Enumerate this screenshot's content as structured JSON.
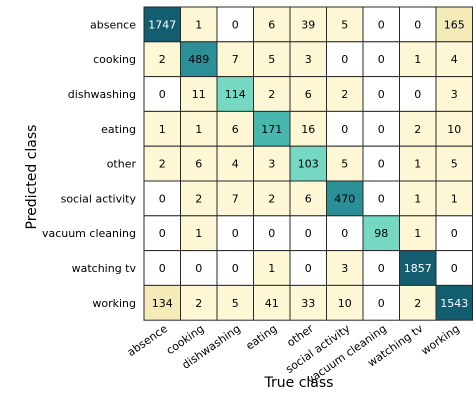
{
  "chart_data": {
    "type": "heatmap",
    "xlabel": "True class",
    "ylabel": "Predicted class",
    "x_categories": [
      "absence",
      "cooking",
      "dishwashing",
      "eating",
      "other",
      "social activity",
      "vacuum cleaning",
      "watching tv",
      "working"
    ],
    "y_categories": [
      "absence",
      "cooking",
      "dishwashing",
      "eating",
      "other",
      "social activity",
      "vacuum cleaning",
      "watching tv",
      "working"
    ],
    "values": [
      [
        1747,
        1,
        0,
        6,
        39,
        5,
        0,
        0,
        165
      ],
      [
        2,
        489,
        7,
        5,
        3,
        0,
        0,
        1,
        4
      ],
      [
        0,
        11,
        114,
        2,
        6,
        2,
        0,
        0,
        3
      ],
      [
        1,
        1,
        6,
        171,
        16,
        0,
        0,
        2,
        10
      ],
      [
        2,
        6,
        4,
        3,
        103,
        5,
        0,
        1,
        5
      ],
      [
        0,
        2,
        7,
        2,
        6,
        470,
        0,
        1,
        1
      ],
      [
        0,
        1,
        0,
        0,
        0,
        0,
        98,
        1,
        0
      ],
      [
        0,
        0,
        0,
        1,
        0,
        3,
        0,
        1857,
        0
      ],
      [
        134,
        2,
        5,
        41,
        33,
        10,
        0,
        2,
        1543
      ]
    ],
    "colors": {
      "zero": "#ffffff",
      "low": "#fdf7d6",
      "medium_low": "#f4ebb8",
      "diagonal_small": "#75d8c3",
      "diagonal_medium": "#48b7ae",
      "diagonal_large": "#2a8f96",
      "max": "#135d70",
      "grid": "#2a2a2a"
    }
  }
}
